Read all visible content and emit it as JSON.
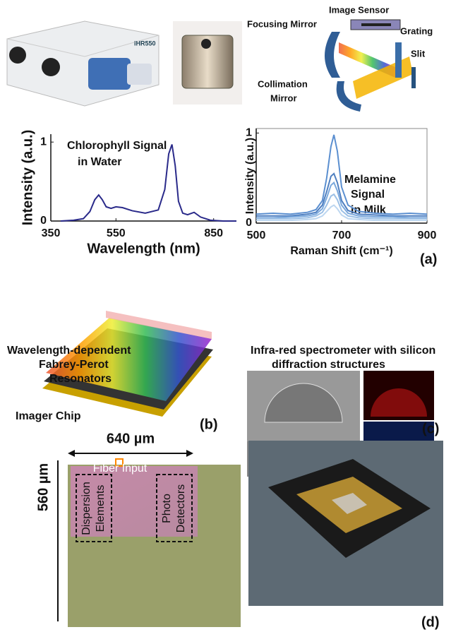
{
  "chart_data": [
    {
      "type": "line",
      "title": "",
      "annotation": [
        "Chlorophyll Signal",
        "in Water"
      ],
      "x_label": "Wavelength (nm)",
      "y_label": "Intensity (a.u.)",
      "x": [
        380,
        420,
        450,
        470,
        485,
        497,
        508,
        520,
        535,
        550,
        570,
        600,
        640,
        680,
        700,
        712,
        722,
        732,
        742,
        755,
        770,
        790,
        810,
        840,
        880,
        920
      ],
      "series": [
        {
          "color": "#2a2a8a",
          "values": [
            0.0,
            0.01,
            0.03,
            0.12,
            0.27,
            0.33,
            0.27,
            0.18,
            0.16,
            0.18,
            0.17,
            0.13,
            0.1,
            0.14,
            0.4,
            0.85,
            0.97,
            0.7,
            0.25,
            0.1,
            0.08,
            0.11,
            0.05,
            0.01,
            0.0,
            0.0
          ]
        }
      ],
      "xlim": [
        350,
        920
      ],
      "xticks": [
        350,
        550,
        850
      ],
      "ylim": [
        0,
        1.1
      ],
      "yticks": [
        0,
        1
      ]
    },
    {
      "type": "line",
      "title": "",
      "annotation": [
        "Melamine",
        "Signal",
        "in Milk"
      ],
      "x_label": "Raman Shift (cm⁻¹)",
      "y_label": "Intensity (a.u.)",
      "x": [
        500,
        540,
        580,
        620,
        640,
        655,
        665,
        675,
        682,
        690,
        700,
        715,
        740,
        780,
        820,
        860,
        900
      ],
      "series": [
        {
          "color": "#5b8fd0",
          "values": [
            0.1,
            0.11,
            0.1,
            0.12,
            0.15,
            0.25,
            0.5,
            0.85,
            0.98,
            0.8,
            0.4,
            0.2,
            0.13,
            0.11,
            0.1,
            0.11,
            0.1
          ]
        },
        {
          "color": "#4f7fc0",
          "values": [
            0.08,
            0.08,
            0.08,
            0.1,
            0.12,
            0.2,
            0.35,
            0.52,
            0.55,
            0.45,
            0.25,
            0.14,
            0.1,
            0.09,
            0.08,
            0.08,
            0.08
          ]
        },
        {
          "color": "#7aa8dc",
          "values": [
            0.06,
            0.06,
            0.07,
            0.08,
            0.1,
            0.16,
            0.28,
            0.42,
            0.45,
            0.36,
            0.2,
            0.11,
            0.08,
            0.07,
            0.07,
            0.06,
            0.06
          ]
        },
        {
          "color": "#9cc0e6",
          "values": [
            0.05,
            0.05,
            0.05,
            0.06,
            0.08,
            0.12,
            0.2,
            0.3,
            0.32,
            0.26,
            0.14,
            0.08,
            0.06,
            0.05,
            0.05,
            0.05,
            0.05
          ]
        },
        {
          "color": "#bcd6f0",
          "values": [
            0.03,
            0.03,
            0.03,
            0.04,
            0.05,
            0.08,
            0.13,
            0.18,
            0.2,
            0.16,
            0.09,
            0.05,
            0.04,
            0.03,
            0.03,
            0.03,
            0.03
          ]
        }
      ],
      "xlim": [
        500,
        900
      ],
      "xticks": [
        500,
        700,
        900
      ],
      "ylim": [
        0,
        1.05
      ],
      "yticks": [
        0,
        1
      ]
    }
  ],
  "panels": {
    "a": {
      "label": "(a)",
      "diagram": {
        "image_sensor": "Image Sensor",
        "focusing_mirror": "Focusing Mirror",
        "grating": "Grating",
        "slit": "Slit",
        "collimation_mirror": [
          "Collimation",
          "Mirror"
        ]
      },
      "instrument_brand": "iHR550"
    },
    "b": {
      "label": "(b)",
      "resonators": [
        "Wavelength-dependent",
        "Fabrey-Perot",
        "Resonators"
      ],
      "imager_chip": "Imager Chip"
    },
    "c": {
      "label": "(c)",
      "title": [
        "Infra-red spectrometer with silicon",
        "diffraction structures"
      ]
    },
    "d": {
      "label": "(d)",
      "width": "640 µm",
      "height": "560 µm",
      "fiber_input": "Fiber Input",
      "dispersion": [
        "Dispersion",
        "Elements"
      ],
      "detectors": [
        "Photo",
        "Detectors"
      ]
    }
  }
}
